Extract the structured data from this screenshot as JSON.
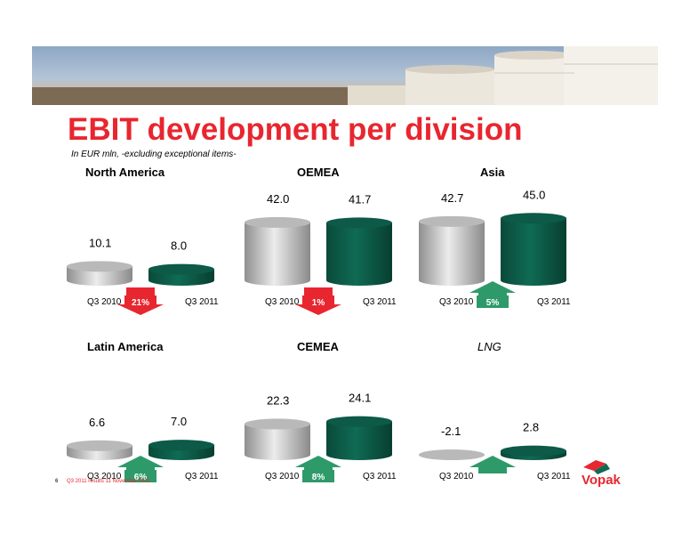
{
  "slide": {
    "title": "EBIT development per division",
    "subtitle": "In EUR mln, -excluding exceptional items-",
    "page_number": "6",
    "footer": "Q3 2011 results   11 November 2011",
    "logo_text": "Vopak"
  },
  "colors": {
    "title": "#e8262f",
    "bar_2010": "#c8c8c8",
    "bar_2011": "#0f6b54",
    "arrow_up": "#2e9a6a",
    "arrow_down": "#e8262f"
  },
  "chart_data": [
    {
      "type": "bar",
      "title": "North America",
      "title_style": "bold",
      "categories": [
        "Q3 2010",
        "Q3 2011"
      ],
      "values": [
        10.1,
        8.0
      ],
      "value_labels": [
        "10.1",
        "8.0"
      ],
      "change": {
        "label": "21%",
        "direction": "down"
      }
    },
    {
      "type": "bar",
      "title": "OEMEA",
      "title_style": "bold",
      "categories": [
        "Q3 2010",
        "Q3 2011"
      ],
      "values": [
        42.0,
        41.7
      ],
      "value_labels": [
        "42.0",
        "41.7"
      ],
      "change": {
        "label": "1%",
        "direction": "down"
      }
    },
    {
      "type": "bar",
      "title": "Asia",
      "title_style": "bold",
      "categories": [
        "Q3 2010",
        "Q3 2011"
      ],
      "values": [
        42.7,
        45.0
      ],
      "value_labels": [
        "42.7",
        "45.0"
      ],
      "change": {
        "label": "5%",
        "direction": "up"
      }
    },
    {
      "type": "bar",
      "title": "Latin America",
      "title_style": "bold",
      "categories": [
        "Q3 2010",
        "Q3 2011"
      ],
      "values": [
        6.6,
        7.0
      ],
      "value_labels": [
        "6.6",
        "7.0"
      ],
      "change": {
        "label": "6%",
        "direction": "up"
      }
    },
    {
      "type": "bar",
      "title": "CEMEA",
      "title_style": "bold",
      "categories": [
        "Q3 2010",
        "Q3 2011"
      ],
      "values": [
        22.3,
        24.1
      ],
      "value_labels": [
        "22.3",
        "24.1"
      ],
      "change": {
        "label": "8%",
        "direction": "up"
      }
    },
    {
      "type": "bar",
      "title": "LNG",
      "title_style": "italic",
      "categories": [
        "Q3 2010",
        "Q3 2011"
      ],
      "values": [
        -2.1,
        2.8
      ],
      "value_labels": [
        "-2.1",
        "2.8"
      ],
      "change": {
        "label": "",
        "direction": "up"
      }
    }
  ]
}
